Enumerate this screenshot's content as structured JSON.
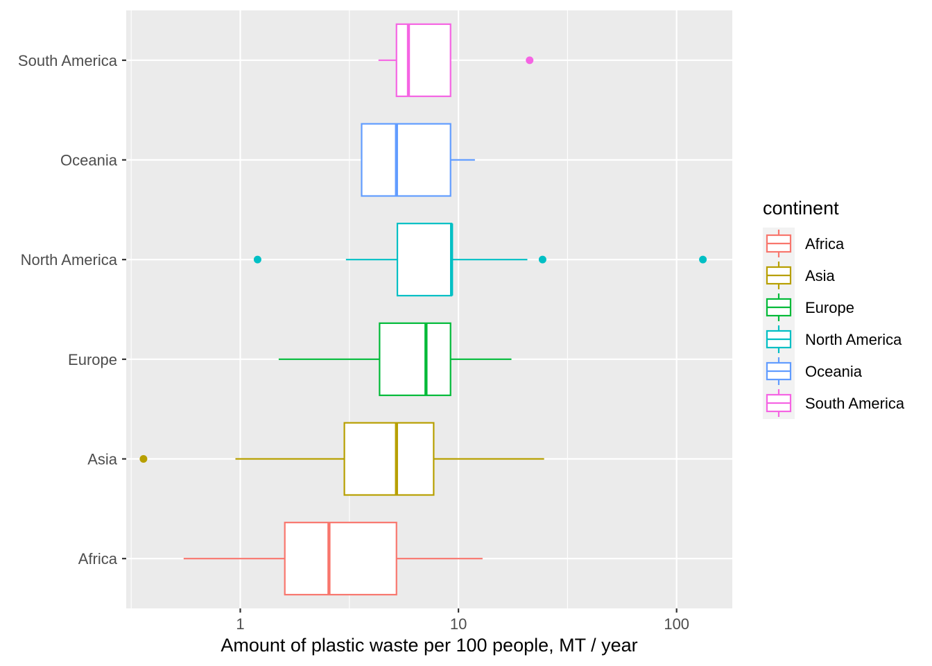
{
  "chart_data": {
    "type": "boxplot",
    "orientation": "horizontal",
    "x_scale": "log10",
    "xlabel": "Amount of plastic waste per 100 people, MT / year",
    "ylabel": "",
    "xlim": [
      0.3,
      180
    ],
    "x_ticks": [
      1,
      10,
      100
    ],
    "x_tick_labels": [
      "1",
      "10",
      "100"
    ],
    "grid": true,
    "panel_background": "#ebebeb",
    "legend": {
      "title": "continent",
      "position": "right"
    },
    "series": [
      {
        "name": "Africa",
        "color": "#F8766D",
        "whisker_low": 0.55,
        "q1": 1.6,
        "median": 2.55,
        "q3": 5.2,
        "whisker_high": 12.9,
        "outliers": []
      },
      {
        "name": "Asia",
        "color": "#B79F00",
        "whisker_low": 0.95,
        "q1": 3.0,
        "median": 5.2,
        "q3": 7.7,
        "whisker_high": 24.7,
        "outliers": [
          0.36
        ]
      },
      {
        "name": "Europe",
        "color": "#00BA38",
        "whisker_low": 1.5,
        "q1": 4.35,
        "median": 7.1,
        "q3": 9.2,
        "whisker_high": 17.5,
        "outliers": []
      },
      {
        "name": "North America",
        "color": "#00BFC4",
        "whisker_low": 3.05,
        "q1": 5.25,
        "median": 9.3,
        "q3": 9.3,
        "whisker_high": 20.7,
        "outliers": [
          1.2,
          24.3,
          132
        ]
      },
      {
        "name": "Oceania",
        "color": "#619CFF",
        "whisker_low": 3.6,
        "q1": 3.6,
        "median": 5.2,
        "q3": 9.2,
        "whisker_high": 11.9,
        "outliers": []
      },
      {
        "name": "South America",
        "color": "#F564E3",
        "whisker_low": 4.3,
        "q1": 5.2,
        "median": 5.9,
        "q3": 9.2,
        "whisker_high": 9.2,
        "outliers": [
          21.2
        ]
      }
    ]
  }
}
